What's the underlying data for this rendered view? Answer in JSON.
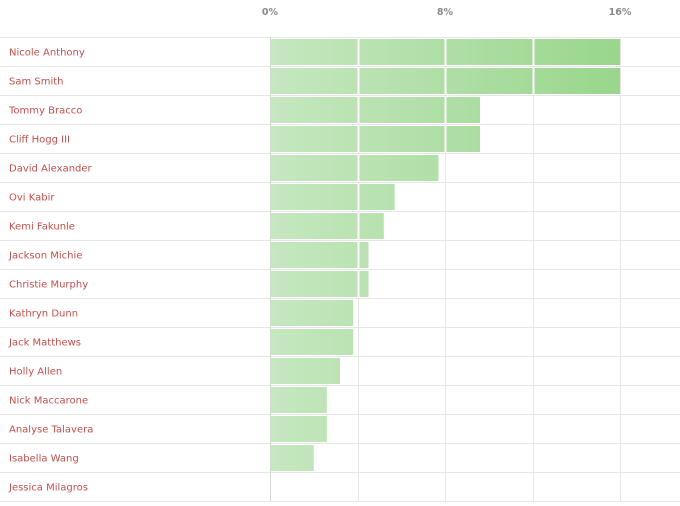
{
  "chart_data": {
    "type": "bar",
    "orientation": "horizontal",
    "categories": [
      "Nicole Anthony",
      "Sam Smith",
      "Tommy Bracco",
      "Cliff Hogg III",
      "David Alexander",
      "Ovi Kabir",
      "Kemi Fakunle",
      "Jackson Michie",
      "Christie Murphy",
      "Kathryn Dunn",
      "Jack Matthews",
      "Holly Allen",
      "Nick Maccarone",
      "Analyse Talavera",
      "Isabella Wang",
      "Jessica Milagros"
    ],
    "values": [
      16.0,
      16.0,
      9.6,
      9.6,
      7.7,
      5.7,
      5.2,
      4.5,
      4.5,
      3.8,
      3.8,
      3.2,
      2.6,
      2.6,
      2.0,
      0.0
    ],
    "xlim": [
      0,
      18.4
    ],
    "ticks": [
      0,
      8,
      16
    ],
    "tick_labels": [
      "0%",
      "8%",
      "16%"
    ],
    "grid": true,
    "colors": {
      "bar_light": "#c6e7c0",
      "bar_dark": "#99d68c",
      "label": "#c0504d",
      "grid": "#e6e6e6"
    }
  }
}
